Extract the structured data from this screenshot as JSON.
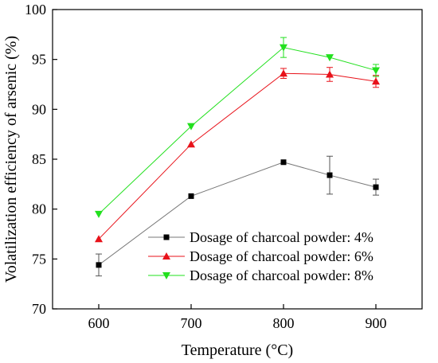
{
  "chart_data": {
    "type": "line",
    "title": "",
    "xlabel": "Temperature (°C)",
    "ylabel": "Volatilization efficiency of arsenic (%)",
    "xlim": [
      550,
      950
    ],
    "ylim": [
      70,
      100
    ],
    "x_ticks": [
      600,
      700,
      800,
      900
    ],
    "y_ticks": [
      70,
      75,
      80,
      85,
      90,
      95,
      100
    ],
    "grid": false,
    "legend_position": "lower-center",
    "x": [
      600,
      700,
      800,
      850,
      900
    ],
    "series": [
      {
        "name": "Dosage of charcoal powder: 4%",
        "color": "#000000",
        "marker": "square",
        "values": [
          74.4,
          81.3,
          84.7,
          83.4,
          82.2
        ],
        "errors": [
          1.1,
          0,
          0,
          1.9,
          0.8
        ]
      },
      {
        "name": "Dosage of charcoal powder: 6%",
        "color": "#e8121a",
        "marker": "triangle-up",
        "values": [
          77.0,
          86.5,
          93.6,
          93.5,
          92.8
        ],
        "errors": [
          0,
          0,
          0.5,
          0.7,
          0.6
        ]
      },
      {
        "name": "Dosage of charcoal powder: 8%",
        "color": "#22e01e",
        "marker": "triangle-down",
        "values": [
          79.5,
          88.3,
          96.2,
          95.2,
          93.9
        ],
        "errors": [
          0,
          0,
          1.0,
          0,
          0.6
        ]
      }
    ]
  }
}
